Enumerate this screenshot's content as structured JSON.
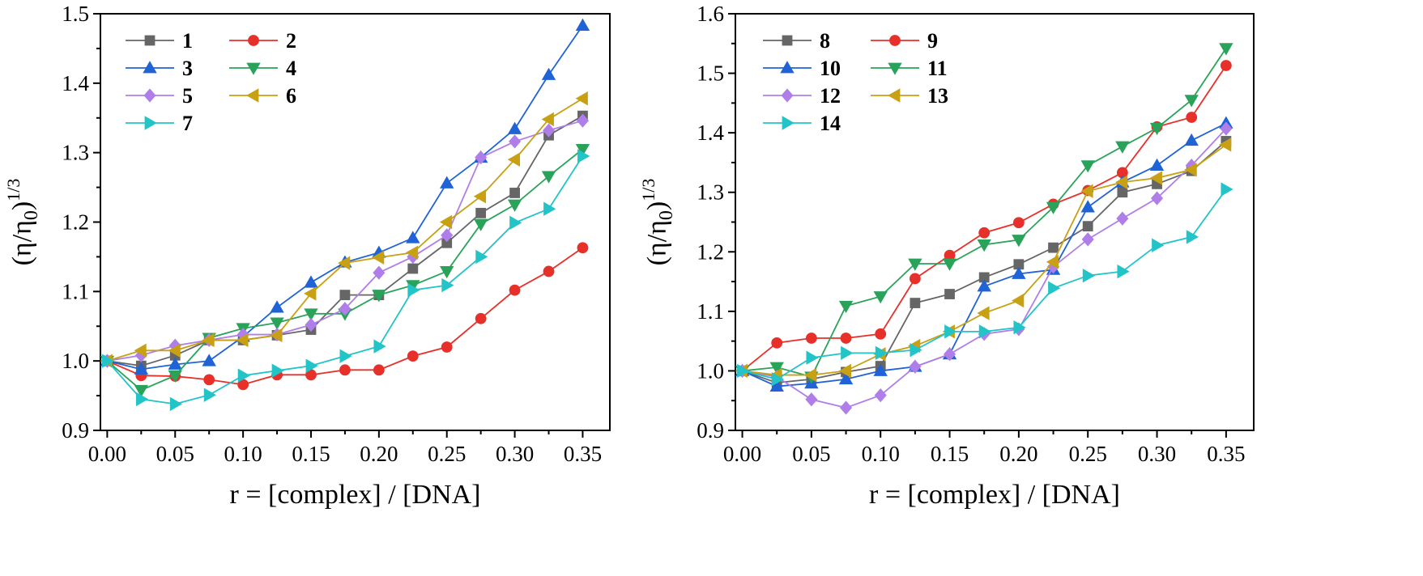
{
  "chart_data": [
    {
      "type": "line",
      "xlabel": "r = [complex] / [DNA]",
      "ylabel_main": "(η/η",
      "ylabel_sub": "0",
      "ylabel_close": ")",
      "ylabel_sup": "1/3",
      "xlim": [
        -0.005,
        0.37
      ],
      "ylim": [
        0.9,
        1.5
      ],
      "xticks": [
        "0.00",
        "0.05",
        "0.10",
        "0.15",
        "0.20",
        "0.25",
        "0.30",
        "0.35"
      ],
      "yticks": [
        "0.9",
        "1.0",
        "1.1",
        "1.2",
        "1.3",
        "1.4",
        "1.5"
      ],
      "legend_position": "top-left",
      "grid": false,
      "x": [
        0,
        0.025,
        0.05,
        0.075,
        0.1,
        0.125,
        0.15,
        0.175,
        0.2,
        0.225,
        0.25,
        0.275,
        0.3,
        0.325,
        0.35
      ],
      "series": [
        {
          "name": "1",
          "color": "#666666",
          "marker": "square",
          "values": [
            1.0,
            0.993,
            1.008,
            1.03,
            1.03,
            1.037,
            1.045,
            1.095,
            1.095,
            1.133,
            1.17,
            1.213,
            1.242,
            1.325,
            1.353
          ]
        },
        {
          "name": "2",
          "color": "#e8302a",
          "marker": "circle",
          "values": [
            1.0,
            0.979,
            0.978,
            0.973,
            0.966,
            0.98,
            0.98,
            0.987,
            0.987,
            1.007,
            1.02,
            1.061,
            1.102,
            1.129,
            1.163
          ]
        },
        {
          "name": "3",
          "color": "#1f63d6",
          "marker": "triangle-up",
          "values": [
            1.0,
            0.988,
            0.995,
            1.0,
            1.035,
            1.077,
            1.113,
            1.142,
            1.156,
            1.177,
            1.256,
            1.293,
            1.334,
            1.412,
            1.483
          ]
        },
        {
          "name": "4",
          "color": "#2aa35a",
          "marker": "triangle-down",
          "values": [
            1.0,
            0.958,
            0.979,
            1.033,
            1.047,
            1.055,
            1.068,
            1.068,
            1.095,
            1.109,
            1.129,
            1.197,
            1.225,
            1.266,
            1.305
          ]
        },
        {
          "name": "5",
          "color": "#b07ee8",
          "marker": "diamond",
          "values": [
            1.0,
            1.008,
            1.022,
            1.03,
            1.038,
            1.038,
            1.052,
            1.075,
            1.127,
            1.15,
            1.181,
            1.293,
            1.316,
            1.332,
            1.346
          ]
        },
        {
          "name": "6",
          "color": "#c7a014",
          "marker": "triangle-left",
          "values": [
            1.0,
            1.015,
            1.015,
            1.03,
            1.03,
            1.037,
            1.097,
            1.141,
            1.149,
            1.156,
            1.2,
            1.237,
            1.29,
            1.348,
            1.378
          ]
        },
        {
          "name": "7",
          "color": "#22c4c8",
          "marker": "triangle-right",
          "values": [
            1.0,
            0.945,
            0.938,
            0.951,
            0.979,
            0.986,
            0.993,
            1.007,
            1.021,
            1.102,
            1.109,
            1.15,
            1.199,
            1.219,
            1.295
          ]
        }
      ]
    },
    {
      "type": "line",
      "xlabel": "r = [complex] / [DNA]",
      "ylabel_main": "(η/η",
      "ylabel_sub": "0",
      "ylabel_close": ")",
      "ylabel_sup": "1/3",
      "xlim": [
        -0.005,
        0.37
      ],
      "ylim": [
        0.9,
        1.6
      ],
      "xticks": [
        "0.00",
        "0.05",
        "0.10",
        "0.15",
        "0.20",
        "0.25",
        "0.30",
        "0.35"
      ],
      "yticks": [
        "0.9",
        "1.0",
        "1.1",
        "1.2",
        "1.3",
        "1.4",
        "1.5",
        "1.6"
      ],
      "legend_position": "top-left",
      "grid": false,
      "x": [
        0,
        0.025,
        0.05,
        0.075,
        0.1,
        0.125,
        0.15,
        0.175,
        0.2,
        0.225,
        0.25,
        0.275,
        0.3,
        0.325,
        0.35
      ],
      "series": [
        {
          "name": "8",
          "color": "#666666",
          "marker": "square",
          "values": [
            1.0,
            0.98,
            0.986,
            0.998,
            1.008,
            1.114,
            1.129,
            1.157,
            1.179,
            1.207,
            1.243,
            1.3,
            1.314,
            1.336,
            1.386
          ]
        },
        {
          "name": "9",
          "color": "#e8302a",
          "marker": "circle",
          "values": [
            1.0,
            1.047,
            1.055,
            1.055,
            1.062,
            1.155,
            1.194,
            1.232,
            1.249,
            1.28,
            1.303,
            1.333,
            1.41,
            1.426,
            1.513
          ]
        },
        {
          "name": "10",
          "color": "#1f63d6",
          "marker": "triangle-up",
          "values": [
            1.0,
            0.974,
            0.979,
            0.986,
            1.0,
            1.007,
            1.028,
            1.142,
            1.163,
            1.17,
            1.275,
            1.317,
            1.345,
            1.387,
            1.416
          ]
        },
        {
          "name": "11",
          "color": "#2aa35a",
          "marker": "triangle-down",
          "values": [
            1.0,
            1.006,
            0.99,
            1.109,
            1.125,
            1.18,
            1.18,
            1.212,
            1.22,
            1.275,
            1.345,
            1.377,
            1.408,
            1.455,
            1.542
          ]
        },
        {
          "name": "12",
          "color": "#b07ee8",
          "marker": "diamond",
          "values": [
            1.0,
            0.99,
            0.952,
            0.938,
            0.959,
            1.007,
            1.028,
            1.062,
            1.07,
            1.175,
            1.221,
            1.256,
            1.29,
            1.345,
            1.407
          ]
        },
        {
          "name": "13",
          "color": "#c7a014",
          "marker": "triangle-left",
          "values": [
            1.0,
            0.993,
            0.993,
            1.0,
            1.028,
            1.042,
            1.066,
            1.097,
            1.118,
            1.183,
            1.302,
            1.317,
            1.324,
            1.338,
            1.38
          ]
        },
        {
          "name": "14",
          "color": "#22c4c8",
          "marker": "triangle-right",
          "values": [
            1.0,
            0.986,
            1.022,
            1.03,
            1.03,
            1.035,
            1.066,
            1.066,
            1.073,
            1.139,
            1.16,
            1.167,
            1.211,
            1.225,
            1.305
          ]
        }
      ]
    }
  ]
}
